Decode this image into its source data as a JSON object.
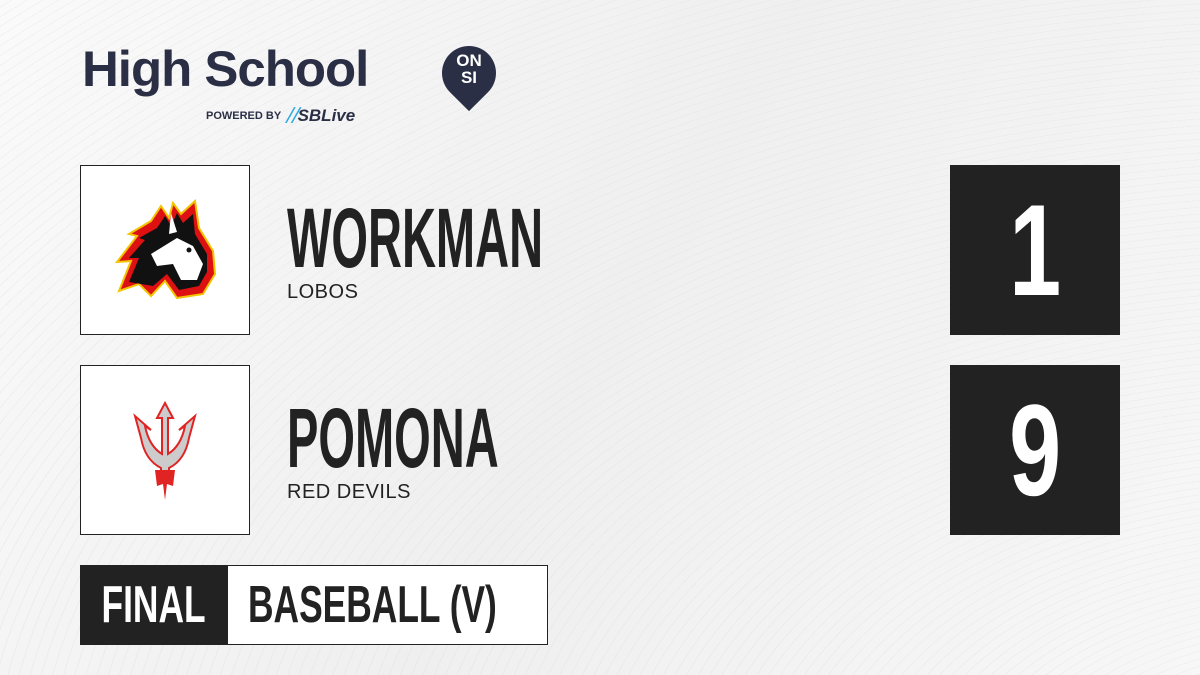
{
  "brand": {
    "title": "High School",
    "badge_line1": "ON",
    "badge_line2": "SI",
    "powered_by": "POWERED BY",
    "sponsor": "SBLive"
  },
  "teams": [
    {
      "name": "WORKMAN",
      "mascot": "LOBOS",
      "score": "1",
      "logo": "wolf-logo"
    },
    {
      "name": "POMONA",
      "mascot": "RED DEVILS",
      "score": "9",
      "logo": "trident-logo"
    }
  ],
  "game": {
    "status": "FINAL",
    "sport": "BASEBALL (V)"
  },
  "colors": {
    "dark": "#222222",
    "brand_navy": "#2b2f45",
    "sbl_blue": "#29a8e0",
    "devil_red": "#e02424"
  }
}
